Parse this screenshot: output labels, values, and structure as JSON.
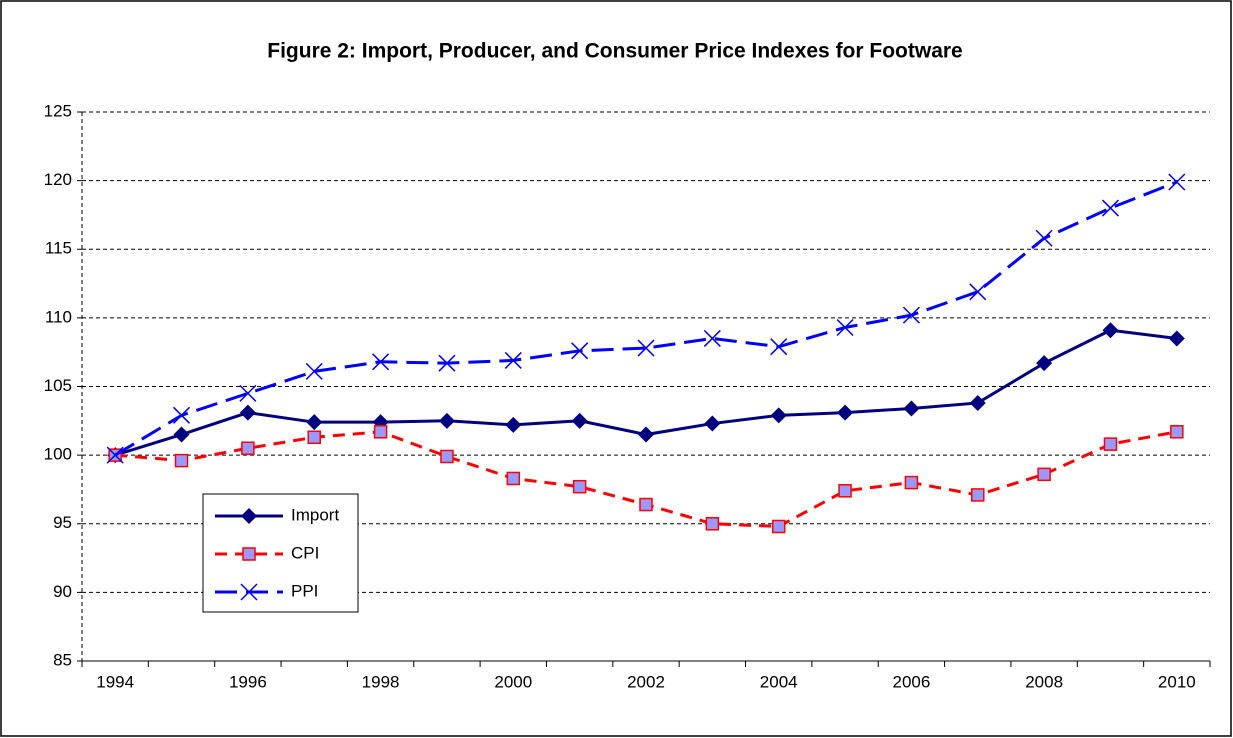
{
  "chart_data": {
    "type": "line",
    "title": "Figure 2: Import, Producer, and Consumer Price Indexes for Footware",
    "categories": [
      "1994",
      null,
      "1996",
      null,
      "1998",
      null,
      "2000",
      null,
      "2002",
      null,
      "2004",
      null,
      "2006",
      null,
      "2008",
      null,
      "2010"
    ],
    "series": [
      {
        "name": "Import",
        "color": "#000080",
        "marker": "diamond",
        "dash": "solid",
        "values": [
          100,
          101.5,
          103.1,
          102.4,
          102.4,
          102.5,
          102.2,
          102.5,
          101.5,
          102.3,
          102.9,
          103.1,
          103.4,
          103.8,
          106.7,
          109.1,
          108.5
        ]
      },
      {
        "name": "CPI",
        "color": "#ff0000",
        "marker": "square",
        "dash": "dashed",
        "values": [
          100,
          99.6,
          100.5,
          101.3,
          101.7,
          99.9,
          98.3,
          97.7,
          96.4,
          95.0,
          94.8,
          97.4,
          98.0,
          97.1,
          98.6,
          100.8,
          101.7
        ]
      },
      {
        "name": "PPI",
        "color": "#0000ff",
        "marker": "x",
        "dash": "longdash",
        "values": [
          100,
          102.9,
          104.5,
          106.1,
          106.8,
          106.7,
          106.9,
          107.6,
          107.8,
          108.5,
          107.9,
          109.3,
          110.2,
          111.9,
          115.8,
          118.0,
          119.9
        ]
      }
    ],
    "ylim": [
      85,
      125
    ],
    "yticks": [
      85,
      90,
      95,
      100,
      105,
      110,
      115,
      120,
      125
    ],
    "grid": true,
    "legend": "lower left"
  }
}
